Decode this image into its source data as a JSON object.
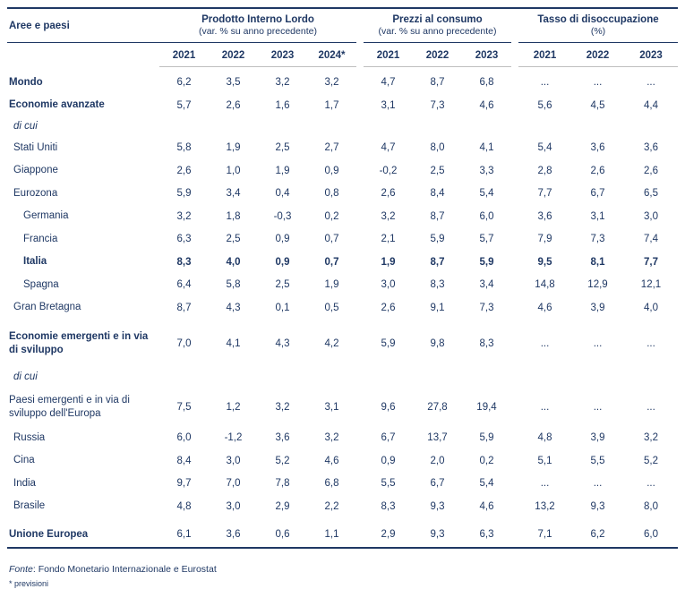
{
  "colors": {
    "text_navy": "#1F3864",
    "rule_navy": "#1F3864",
    "rule_gray": "#BFBFBF",
    "background": "#FFFFFF"
  },
  "table": {
    "row_header_label": "Aree e paesi",
    "groups": [
      {
        "title": "Prodotto Interno Lordo",
        "subtitle": "(var. % su anno precedente)",
        "years": [
          "2021",
          "2022",
          "2023",
          "2024*"
        ]
      },
      {
        "title": "Prezzi al consumo",
        "subtitle": "(var. % su anno precedente)",
        "years": [
          "2021",
          "2022",
          "2023"
        ]
      },
      {
        "title": "Tasso di disoccupazione",
        "subtitle": "(%)",
        "years": [
          "2021",
          "2022",
          "2023"
        ]
      }
    ],
    "rows": [
      {
        "label": "Mondo",
        "bold_label": true,
        "indent": 0,
        "gdp": [
          "6,2",
          "3,5",
          "3,2",
          "3,2"
        ],
        "cpi": [
          "4,7",
          "8,7",
          "6,8"
        ],
        "unemp": [
          "...",
          "...",
          "..."
        ]
      },
      {
        "label": "Economie avanzate",
        "bold_label": true,
        "indent": 0,
        "gdp": [
          "5,7",
          "2,6",
          "1,6",
          "1,7"
        ],
        "cpi": [
          "3,1",
          "7,3",
          "4,6"
        ],
        "unemp": [
          "5,6",
          "4,5",
          "4,4"
        ]
      },
      {
        "label": "di cui",
        "italic": true,
        "indent": 1,
        "gdp": [],
        "cpi": [],
        "unemp": []
      },
      {
        "label": "Stati Uniti",
        "indent": 1,
        "gdp": [
          "5,8",
          "1,9",
          "2,5",
          "2,7"
        ],
        "cpi": [
          "4,7",
          "8,0",
          "4,1"
        ],
        "unemp": [
          "5,4",
          "3,6",
          "3,6"
        ]
      },
      {
        "label": "Giappone",
        "indent": 1,
        "gdp": [
          "2,6",
          "1,0",
          "1,9",
          "0,9"
        ],
        "cpi": [
          "-0,2",
          "2,5",
          "3,3"
        ],
        "unemp": [
          "2,8",
          "2,6",
          "2,6"
        ]
      },
      {
        "label": "Eurozona",
        "indent": 1,
        "gdp": [
          "5,9",
          "3,4",
          "0,4",
          "0,8"
        ],
        "cpi": [
          "2,6",
          "8,4",
          "5,4"
        ],
        "unemp": [
          "7,7",
          "6,7",
          "6,5"
        ]
      },
      {
        "label": "Germania",
        "indent": 2,
        "gdp": [
          "3,2",
          "1,8",
          "-0,3",
          "0,2"
        ],
        "cpi": [
          "3,2",
          "8,7",
          "6,0"
        ],
        "unemp": [
          "3,6",
          "3,1",
          "3,0"
        ]
      },
      {
        "label": "Francia",
        "indent": 2,
        "gdp": [
          "6,3",
          "2,5",
          "0,9",
          "0,7"
        ],
        "cpi": [
          "2,1",
          "5,9",
          "5,7"
        ],
        "unemp": [
          "7,9",
          "7,3",
          "7,4"
        ]
      },
      {
        "label": "Italia",
        "bold_label": true,
        "bold_values": true,
        "indent": 2,
        "gdp": [
          "8,3",
          "4,0",
          "0,9",
          "0,7"
        ],
        "cpi": [
          "1,9",
          "8,7",
          "5,9"
        ],
        "unemp": [
          "9,5",
          "8,1",
          "7,7"
        ]
      },
      {
        "label": "Spagna",
        "indent": 2,
        "gdp": [
          "6,4",
          "5,8",
          "2,5",
          "1,9"
        ],
        "cpi": [
          "3,0",
          "8,3",
          "3,4"
        ],
        "unemp": [
          "14,8",
          "12,9",
          "12,1"
        ]
      },
      {
        "label": "Gran Bretagna",
        "indent": 1,
        "gdp": [
          "8,7",
          "4,3",
          "0,1",
          "0,5"
        ],
        "cpi": [
          "2,6",
          "9,1",
          "7,3"
        ],
        "unemp": [
          "4,6",
          "3,9",
          "4,0"
        ]
      },
      {
        "label": "Economie emergenti e in via di sviluppo",
        "bold_label": true,
        "indent": 0,
        "two_line": true,
        "gap_before": true,
        "gdp": [
          "7,0",
          "4,1",
          "4,3",
          "4,2"
        ],
        "cpi": [
          "5,9",
          "9,8",
          "8,3"
        ],
        "unemp": [
          "...",
          "...",
          "..."
        ]
      },
      {
        "label": "di cui",
        "italic": true,
        "indent": 1,
        "gap_before": true,
        "gdp": [],
        "cpi": [],
        "unemp": []
      },
      {
        "label": "Paesi emergenti e in via di sviluppo dell'Europa",
        "indent": 0,
        "two_line": true,
        "gdp": [
          "7,5",
          "1,2",
          "3,2",
          "3,1"
        ],
        "cpi": [
          "9,6",
          "27,8",
          "19,4"
        ],
        "unemp": [
          "...",
          "...",
          "..."
        ]
      },
      {
        "label": "Russia",
        "indent": 1,
        "gdp": [
          "6,0",
          "-1,2",
          "3,6",
          "3,2"
        ],
        "cpi": [
          "6,7",
          "13,7",
          "5,9"
        ],
        "unemp": [
          "4,8",
          "3,9",
          "3,2"
        ]
      },
      {
        "label": "Cina",
        "indent": 1,
        "gdp": [
          "8,4",
          "3,0",
          "5,2",
          "4,6"
        ],
        "cpi": [
          "0,9",
          "2,0",
          "0,2"
        ],
        "unemp": [
          "5,1",
          "5,5",
          "5,2"
        ]
      },
      {
        "label": "India",
        "indent": 1,
        "gdp": [
          "9,7",
          "7,0",
          "7,8",
          "6,8"
        ],
        "cpi": [
          "5,5",
          "6,7",
          "5,4"
        ],
        "unemp": [
          "...",
          "...",
          "..."
        ]
      },
      {
        "label": "Brasile",
        "indent": 1,
        "gdp": [
          "4,8",
          "3,0",
          "2,9",
          "2,2"
        ],
        "cpi": [
          "8,3",
          "9,3",
          "4,6"
        ],
        "unemp": [
          "13,2",
          "9,3",
          "8,0"
        ]
      },
      {
        "label": "Unione Europea",
        "bold_label": true,
        "indent": 0,
        "gap_before": true,
        "bottom_rule": true,
        "gdp": [
          "6,1",
          "3,6",
          "0,6",
          "1,1"
        ],
        "cpi": [
          "2,9",
          "9,3",
          "6,3"
        ],
        "unemp": [
          "7,1",
          "6,2",
          "6,0"
        ]
      }
    ],
    "footer": {
      "source_label": "Fonte",
      "source_rest": ": Fondo Monetario Internazionale e Eurostat",
      "note": "* previsioni"
    }
  }
}
